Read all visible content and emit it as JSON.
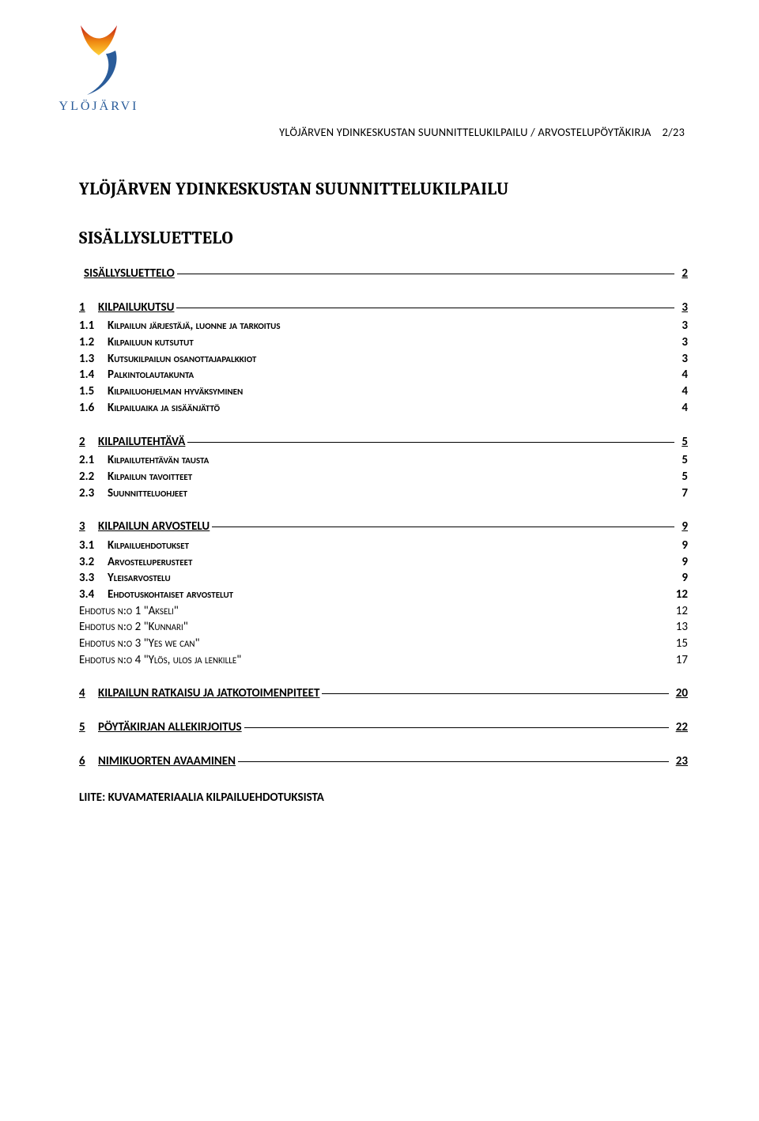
{
  "logo": {
    "text": "YLÖJÄRVI",
    "color_text": "#2a5c9a"
  },
  "running_head": {
    "text": "YLÖJÄRVEN YDINKESKUSTAN SUUNNITTELUKILPAILU / ARVOSTELUPÖYTÄKIRJA",
    "page": "2/23"
  },
  "title_main": "YLÖJÄRVEN YDINKESKUSTAN SUUNNITTELUKILPAILU",
  "title_toc": "SISÄLLYSLUETTELO",
  "toc": [
    {
      "level": 1,
      "num": "",
      "label": "SISÄLLYSLUETTELO",
      "page": "2"
    },
    {
      "level": 1,
      "num": "1",
      "label": "KILPAILUKUTSU",
      "page": "3"
    },
    {
      "level": 2,
      "num": "1.1",
      "label": "Kilpailun järjestäjä, luonne ja tarkoitus",
      "page": "3"
    },
    {
      "level": 2,
      "num": "1.2",
      "label": "Kilpailuun kutsutut",
      "page": "3"
    },
    {
      "level": 2,
      "num": "1.3",
      "label": "Kutsukilpailun osanottajapalkkiot",
      "page": "3"
    },
    {
      "level": 2,
      "num": "1.4",
      "label": "Palkintolautakunta",
      "page": "4"
    },
    {
      "level": 2,
      "num": "1.5",
      "label": "Kilpailuohjelman hyväksyminen",
      "page": "4"
    },
    {
      "level": 2,
      "num": "1.6",
      "label": "Kilpailuaika ja sisäänjättö",
      "page": "4"
    },
    {
      "level": 1,
      "num": "2",
      "label": "KILPAILUTEHTÄVÄ",
      "page": "5"
    },
    {
      "level": 2,
      "num": "2.1",
      "label": "Kilpailutehtävän tausta",
      "page": "5"
    },
    {
      "level": 2,
      "num": "2.2",
      "label": "Kilpailun tavoitteet",
      "page": "5"
    },
    {
      "level": 2,
      "num": "2.3",
      "label": "Suunnitteluohjeet",
      "page": "7"
    },
    {
      "level": 1,
      "num": "3",
      "label": "KILPAILUN ARVOSTELU",
      "page": "9"
    },
    {
      "level": 2,
      "num": "3.1",
      "label": "Kilpailuehdotukset",
      "page": "9"
    },
    {
      "level": 2,
      "num": "3.2",
      "label": "Arvosteluperusteet",
      "page": "9"
    },
    {
      "level": 2,
      "num": "3.3",
      "label": "Yleisarvostelu",
      "page": "9"
    },
    {
      "level": 2,
      "num": "3.4",
      "label": "Ehdotuskohtaiset arvostelut",
      "page": "12"
    },
    {
      "level": 3,
      "num": "",
      "label": "Ehdotus n:o 1 \"Akseli\"",
      "page": "12"
    },
    {
      "level": 3,
      "num": "",
      "label": "Ehdotus n:o 2 \"Kunnari\"",
      "page": "13"
    },
    {
      "level": 3,
      "num": "",
      "label": "Ehdotus n:o 3 \"Yes we can\"",
      "page": "15"
    },
    {
      "level": 3,
      "num": "",
      "label": "Ehdotus n:o 4 \"Ylös, ulos ja lenkille\"",
      "page": "17"
    },
    {
      "level": 1,
      "num": "4",
      "label": "KILPAILUN RATKAISU JA JATKOTOIMENPITEET",
      "page": "20"
    },
    {
      "level": 1,
      "num": "5",
      "label": "PÖYTÄKIRJAN ALLEKIRJOITUS",
      "page": "22"
    },
    {
      "level": 1,
      "num": "6",
      "label": "NIMIKUORTEN AVAAMINEN",
      "page": "23"
    }
  ],
  "appendix": "LIITE:  KUVAMATERIAALIA KILPAILUEHDOTUKSISTA"
}
